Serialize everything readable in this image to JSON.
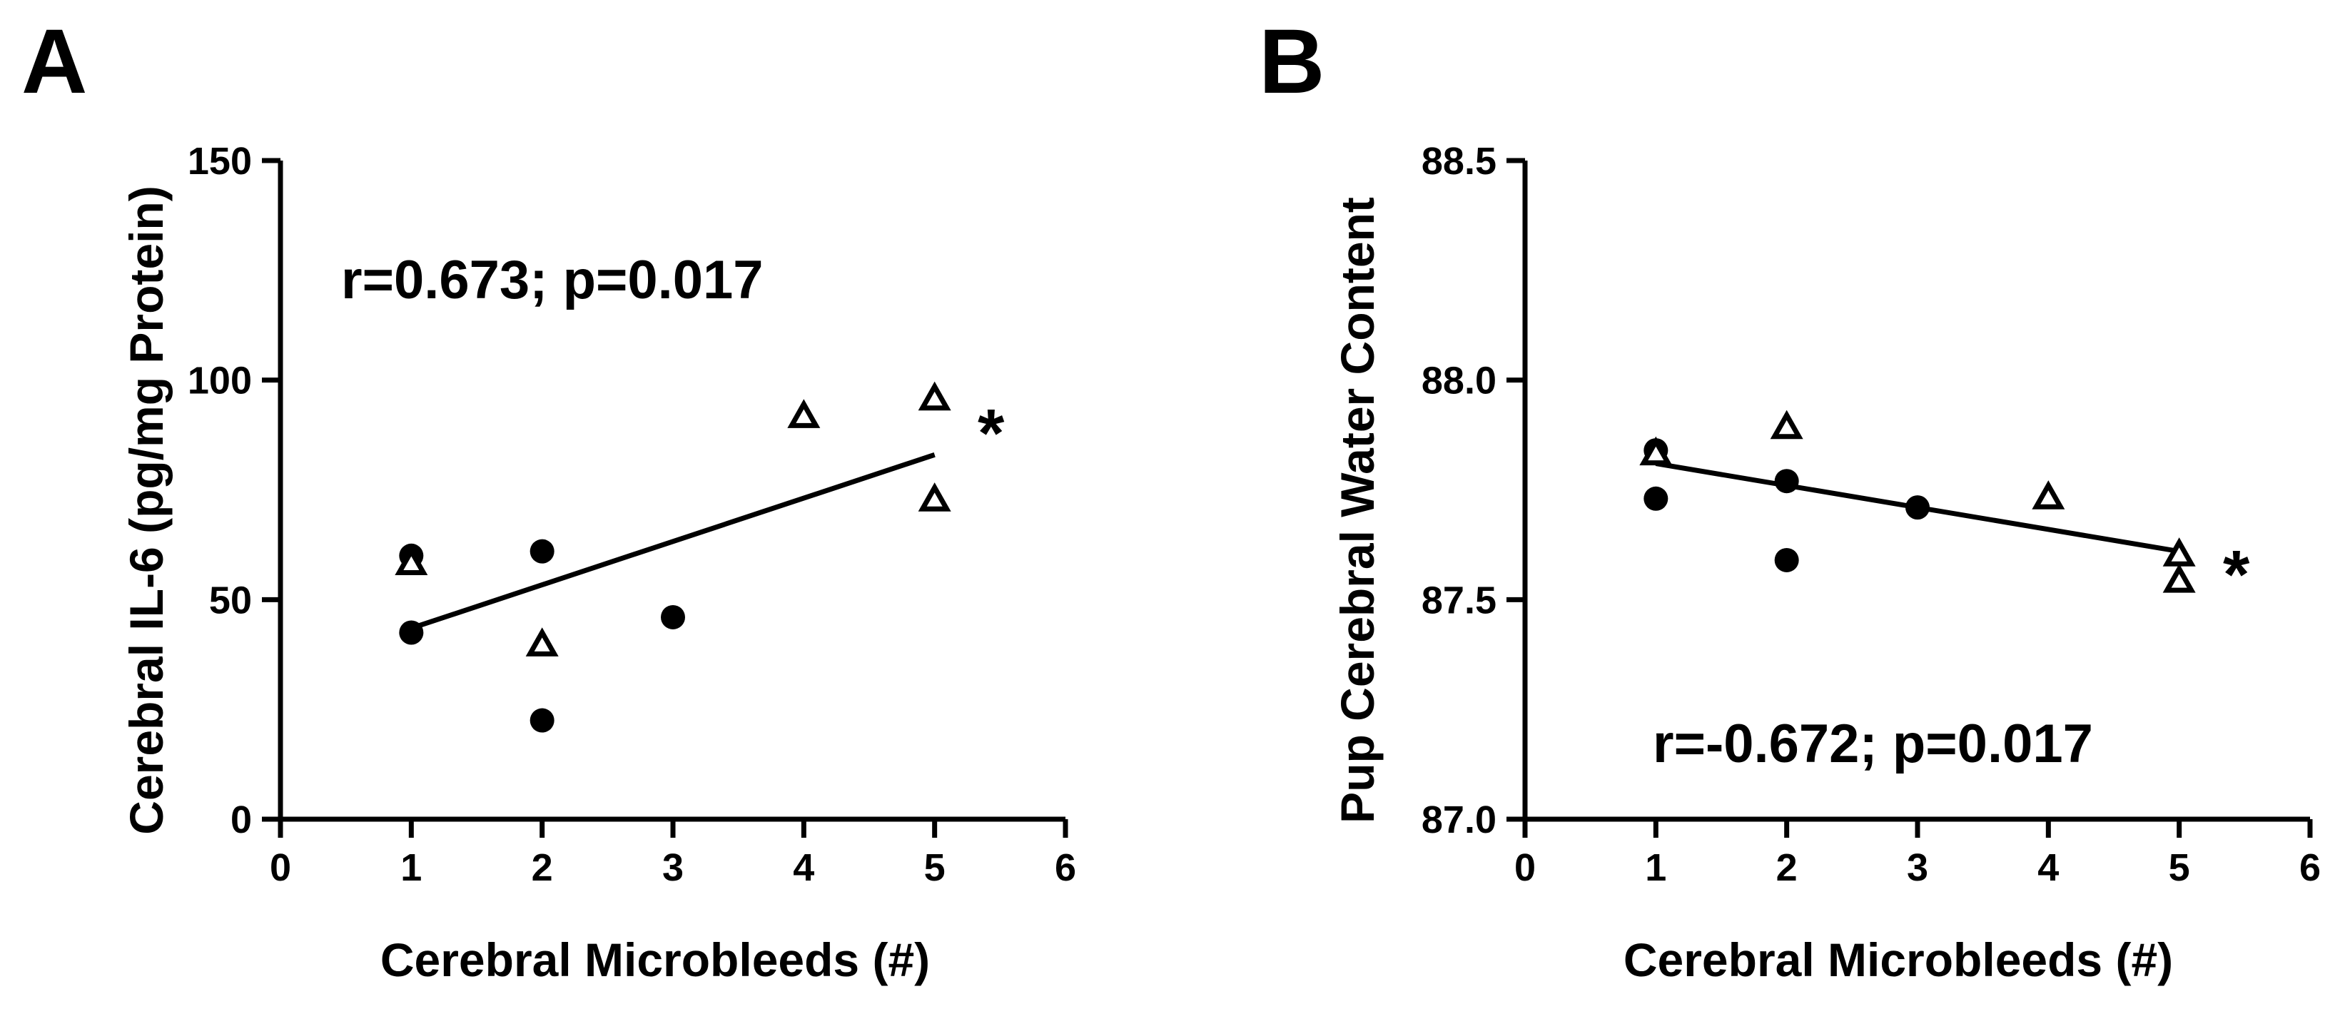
{
  "chart_data": [
    {
      "type": "scatter",
      "panel_label": "A",
      "xlabel": "Cerebral Microbleeds (#)",
      "ylabel": "Cerebral IL-6 (pg/mg Protein)",
      "xlim": [
        0,
        6
      ],
      "ylim": [
        0,
        150
      ],
      "xticks": [
        0,
        1,
        2,
        3,
        4,
        5,
        6
      ],
      "yticks": [
        0,
        50,
        100,
        150
      ],
      "xtick_labels": [
        "0",
        "1",
        "2",
        "3",
        "4",
        "5",
        "6"
      ],
      "ytick_labels": [
        "0",
        "50",
        "100",
        "150"
      ],
      "annotation": "r=0.673; p=0.017",
      "significance": "*",
      "series": [
        {
          "name": "circles",
          "marker": "circle",
          "x": [
            1,
            1,
            2,
            2,
            3
          ],
          "y": [
            60,
            42.5,
            61,
            22.5,
            46
          ]
        },
        {
          "name": "triangles",
          "marker": "triangle-open",
          "x": [
            1,
            2,
            4,
            5,
            5
          ],
          "y": [
            58,
            39.5,
            91.5,
            95.5,
            72.5
          ]
        }
      ],
      "fit_line": {
        "x": [
          1,
          5
        ],
        "y": [
          43.5,
          83
        ]
      }
    },
    {
      "type": "scatter",
      "panel_label": "B",
      "xlabel": "Cerebral Microbleeds (#)",
      "ylabel": "Pup Cerebral Water Content",
      "xlim": [
        0,
        6
      ],
      "ylim": [
        87.0,
        88.5
      ],
      "xticks": [
        0,
        1,
        2,
        3,
        4,
        5,
        6
      ],
      "yticks": [
        87.0,
        87.5,
        88.0,
        88.5
      ],
      "xtick_labels": [
        "0",
        "1",
        "2",
        "3",
        "4",
        "5",
        "6"
      ],
      "ytick_labels": [
        "87.0",
        "87.5",
        "88.0",
        "88.5"
      ],
      "annotation": "r=-0.672; p=0.017",
      "significance": "*",
      "series": [
        {
          "name": "circles",
          "marker": "circle",
          "x": [
            1,
            1,
            2,
            2,
            3
          ],
          "y": [
            87.84,
            87.73,
            87.77,
            87.59,
            87.71
          ]
        },
        {
          "name": "triangles",
          "marker": "triangle-open",
          "x": [
            1,
            2,
            4,
            5,
            5
          ],
          "y": [
            87.83,
            87.89,
            87.73,
            87.6,
            87.54
          ]
        }
      ],
      "fit_line": {
        "x": [
          1,
          5
        ],
        "y": [
          87.81,
          87.61
        ]
      }
    }
  ]
}
